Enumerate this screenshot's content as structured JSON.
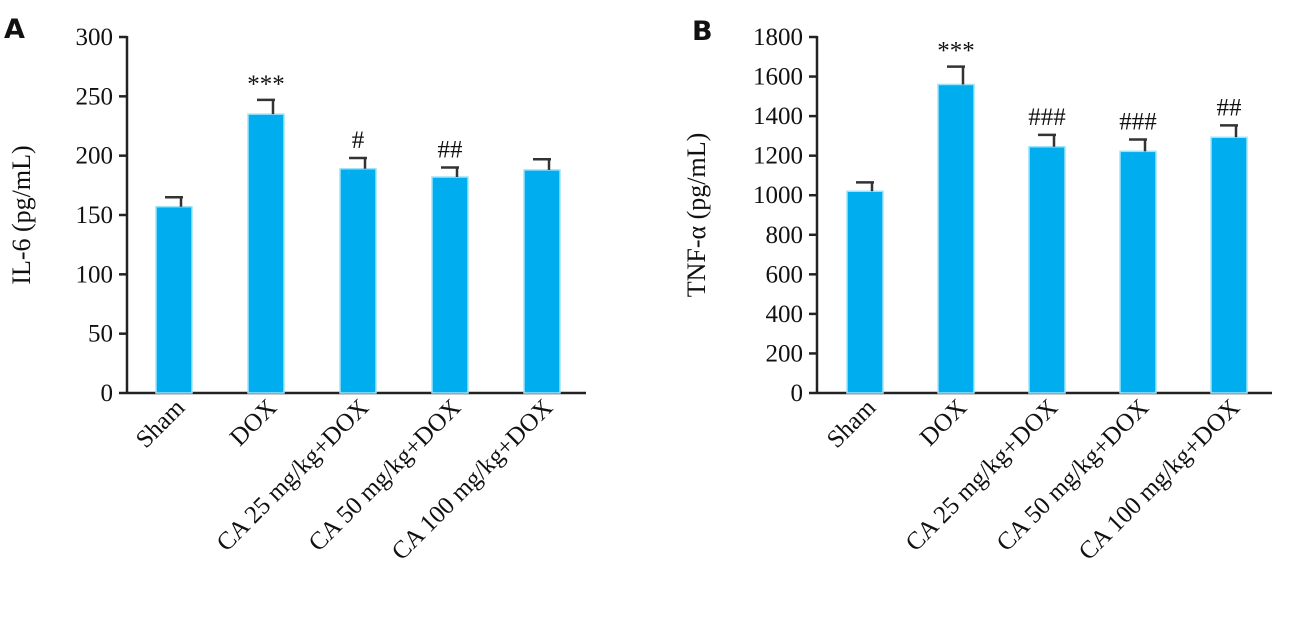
{
  "chart_data": [
    {
      "panel": "A",
      "type": "bar",
      "ylabel": "IL-6 (pg/mL)",
      "xlabel": "",
      "ylim": [
        0,
        300
      ],
      "yticks": [
        0,
        50,
        100,
        150,
        200,
        250,
        300
      ],
      "categories": [
        "Sham",
        "DOX",
        "CA 25 mg/kg+DOX",
        "CA 50 mg/kg+DOX",
        "CA 100 mg/kg+DOX"
      ],
      "values": [
        157,
        235,
        189,
        182,
        188
      ],
      "errors": [
        8,
        12,
        9,
        8,
        9
      ],
      "annotations": [
        "",
        "***",
        "#",
        "##",
        ""
      ],
      "bar_color": "#00AEEF"
    },
    {
      "panel": "B",
      "type": "bar",
      "ylabel": "TNF-α (pg/mL)",
      "xlabel": "",
      "ylim": [
        0,
        1800
      ],
      "yticks": [
        0,
        200,
        400,
        600,
        800,
        1000,
        1200,
        1400,
        1600,
        1800
      ],
      "categories": [
        "Sham",
        "DOX",
        "CA 25 mg/kg+DOX",
        "CA 50 mg/kg+DOX",
        "CA 100 mg/kg+DOX"
      ],
      "values": [
        1020,
        1560,
        1245,
        1222,
        1293
      ],
      "errors": [
        45,
        90,
        60,
        60,
        60
      ],
      "annotations": [
        "",
        "***",
        "###",
        "###",
        "##"
      ],
      "bar_color": "#00AEEF"
    }
  ]
}
